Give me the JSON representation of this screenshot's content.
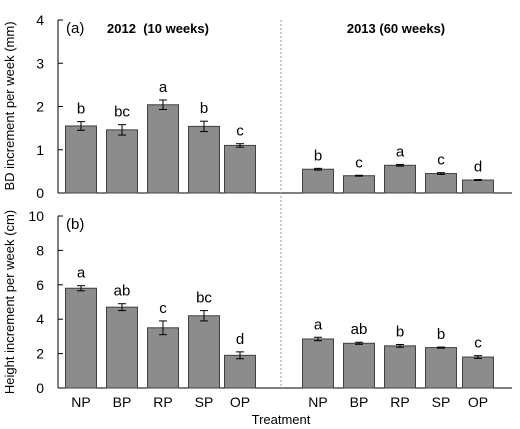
{
  "chart_data": [
    {
      "type": "bar",
      "panel_label": "(a)",
      "ylabel": "BD increment per week (mm)",
      "ylim": [
        0,
        4
      ],
      "yticks": [
        0,
        1,
        2,
        3,
        4
      ],
      "groups": [
        {
          "title": "2012  (10 weeks)",
          "categories": [
            "NP",
            "BP",
            "RP",
            "SP",
            "OP"
          ],
          "values": [
            1.55,
            1.46,
            2.04,
            1.54,
            1.1
          ],
          "errors": [
            0.1,
            0.12,
            0.11,
            0.12,
            0.04
          ],
          "letters": [
            "b",
            "bc",
            "a",
            "b",
            "c"
          ]
        },
        {
          "title": "2013 (60 weeks)",
          "categories": [
            "NP",
            "BP",
            "RP",
            "SP",
            "OP"
          ],
          "values": [
            0.55,
            0.4,
            0.64,
            0.45,
            0.3
          ],
          "errors": [
            0.02,
            0.01,
            0.02,
            0.02,
            0.01
          ],
          "letters": [
            "b",
            "c",
            "a",
            "c",
            "d"
          ]
        }
      ]
    },
    {
      "type": "bar",
      "panel_label": "(b)",
      "ylabel": "Height increment per week (cm)",
      "xlabel": "Treatment",
      "ylim": [
        0,
        10
      ],
      "yticks": [
        0,
        2,
        4,
        6,
        8,
        10
      ],
      "groups": [
        {
          "title": "",
          "categories": [
            "NP",
            "BP",
            "RP",
            "SP",
            "OP"
          ],
          "values": [
            5.8,
            4.7,
            3.5,
            4.2,
            1.9
          ],
          "errors": [
            0.15,
            0.2,
            0.4,
            0.3,
            0.2
          ],
          "letters": [
            "a",
            "ab",
            "c",
            "bc",
            "d"
          ]
        },
        {
          "title": "",
          "categories": [
            "NP",
            "BP",
            "RP",
            "SP",
            "OP"
          ],
          "values": [
            2.85,
            2.6,
            2.45,
            2.35,
            1.8
          ],
          "errors": [
            0.1,
            0.06,
            0.08,
            0.03,
            0.08
          ],
          "letters": [
            "a",
            "ab",
            "b",
            "b",
            "c"
          ]
        }
      ]
    }
  ],
  "colors": {
    "bar": "#8c8c8c",
    "bar_edge": "#404040",
    "divider": "#9a9a9a"
  }
}
